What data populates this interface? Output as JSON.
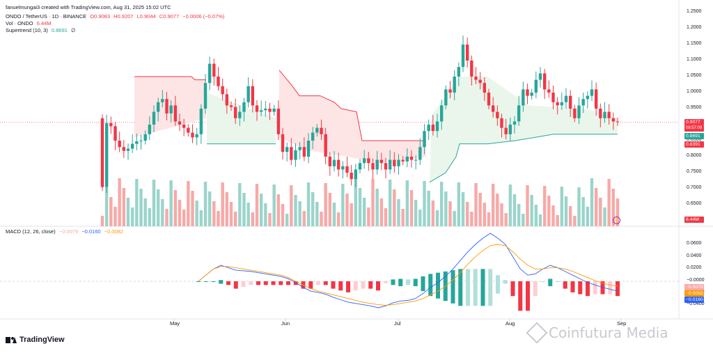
{
  "header": {
    "credit": "fanuelmungai3 created with TradingView.com, Aug 31, 2025 15:02 UTC",
    "symbol": "ONDO / TetherUS · 1D · BINANCE",
    "ohlc_o": "O0.9083",
    "ohlc_h": "H0.9207",
    "ohlc_l": "L0.9044",
    "ohlc_c": "C0.9077",
    "change": "−0.0006 (−0.07%)",
    "vol_label": "Vol · ONDO",
    "vol_value": "6.44M",
    "st_label": "Supertrend (10, 3)",
    "st_value": "0.8691",
    "st_extra": "∅",
    "macd_label": "MACD (12, 26, close)",
    "macd_hist": "−0.0079",
    "macd_line": "−0.0160",
    "macd_signal": "−0.0082"
  },
  "price_axis": {
    "ticks": [
      "1.2500",
      "1.2000",
      "1.1500",
      "1.1000",
      "1.0500",
      "1.0000",
      "0.9500",
      "0.9000",
      "0.8500",
      "0.8000",
      "0.7500",
      "0.7000",
      "0.6500"
    ],
    "tag_close": "0.9077",
    "tag_countdown": "08:57:09",
    "tag_st": "0.8691",
    "tag_low": "0.8391",
    "tag_vol": "6.44M"
  },
  "macd_axis": {
    "ticks": [
      "0.0600",
      "0.0400",
      "0.0200",
      "−0.0000",
      "−0.0200",
      "−0.0400"
    ],
    "tag_hist": "−0.0079",
    "tag_signal": "−0.0082",
    "tag_macd": "−0.0160"
  },
  "months": [
    "May",
    "Jun",
    "Jul",
    "Aug",
    "Sep"
  ],
  "branding": {
    "logo": "TradingView",
    "watermark": "Coinfutura Media"
  },
  "colors": {
    "up": "#26a69a",
    "down": "#f23645",
    "macd": "#2962ff",
    "signal": "#ff9800",
    "st_up_fill": "#e8f5e9",
    "st_down_fill": "#fde2e2"
  },
  "chart_data": {
    "type": "candlestick",
    "title": "ONDO / TetherUS · 1D · BINANCE",
    "ylim": [
      0.62,
      1.26
    ],
    "series": [
      {
        "name": "price_close",
        "values": [
          0.705,
          0.905,
          0.895,
          0.85,
          0.83,
          0.818,
          0.825,
          0.84,
          0.848,
          0.85,
          0.87,
          0.9,
          0.94,
          0.97,
          0.98,
          0.935,
          0.96,
          0.91,
          0.9,
          0.89,
          0.875,
          0.86,
          0.87,
          0.95,
          1.03,
          1.09,
          1.05,
          1.02,
          0.995,
          0.96,
          0.955,
          0.92,
          0.94,
          0.97,
          1.02,
          0.96,
          0.94,
          0.945,
          0.95,
          0.94,
          0.95,
          0.87,
          0.815,
          0.83,
          0.79,
          0.82,
          0.83,
          0.8,
          0.85,
          0.875,
          0.89,
          0.87,
          0.8,
          0.77,
          0.79,
          0.76,
          0.77,
          0.75,
          0.73,
          0.76,
          0.78,
          0.795,
          0.78,
          0.76,
          0.79,
          0.78,
          0.76,
          0.79,
          0.77,
          0.79,
          0.785,
          0.8,
          0.79,
          0.79,
          0.83,
          0.88,
          0.9,
          0.88,
          0.91,
          0.96,
          1.01,
          1.0,
          1.05,
          1.08,
          1.15,
          1.1,
          1.05,
          1.04,
          1.03,
          1.0,
          0.96,
          0.94,
          0.92,
          0.89,
          0.87,
          0.9,
          0.91,
          0.96,
          1.01,
          0.99,
          1.0,
          1.04,
          1.06,
          1.01,
          1.0,
          0.97,
          0.96,
          0.97,
          0.99,
          0.95,
          0.92,
          0.96,
          0.98,
          0.99,
          1.01,
          0.95,
          0.92,
          0.94,
          0.92,
          0.91,
          0.908
        ]
      }
    ],
    "supertrend_breaks": [
      "downtrend early May",
      "uptrend mid May",
      "downtrend Jun",
      "uptrend Jul to Aug"
    ],
    "macd_ylim": [
      -0.045,
      0.065
    ],
    "macd_series": [
      {
        "name": "MACD",
        "values": [
          0.0,
          0.01,
          0.02,
          0.026,
          0.022,
          0.018,
          0.017,
          0.016,
          0.014,
          0.012,
          0.01,
          0.008,
          0.004,
          -0.002,
          -0.01,
          -0.016,
          -0.018,
          -0.021,
          -0.026,
          -0.03,
          -0.034,
          -0.036,
          -0.038,
          -0.04,
          -0.043,
          -0.04,
          -0.035,
          -0.032,
          -0.031,
          -0.028,
          -0.02,
          -0.01,
          -0.002,
          0.008,
          0.02,
          0.034,
          0.048,
          0.06,
          0.07,
          0.078,
          0.07,
          0.06,
          0.04,
          0.02,
          0.01,
          0.012,
          0.02,
          0.026,
          0.022,
          0.016,
          0.01,
          0.004,
          -0.002,
          -0.006,
          -0.01,
          -0.013,
          -0.016
        ]
      },
      {
        "name": "Signal",
        "values": [
          0.0,
          0.01,
          0.02,
          0.024,
          0.024,
          0.022,
          0.02,
          0.018,
          0.016,
          0.014,
          0.012,
          0.01,
          0.006,
          0.0,
          -0.006,
          -0.012,
          -0.016,
          -0.019,
          -0.022,
          -0.025,
          -0.028,
          -0.031,
          -0.034,
          -0.036,
          -0.038,
          -0.039,
          -0.038,
          -0.036,
          -0.034,
          -0.032,
          -0.028,
          -0.022,
          -0.016,
          -0.008,
          0.002,
          0.014,
          0.028,
          0.04,
          0.05,
          0.058,
          0.06,
          0.058,
          0.048,
          0.036,
          0.026,
          0.02,
          0.02,
          0.022,
          0.022,
          0.02,
          0.016,
          0.011,
          0.006,
          0.001,
          -0.003,
          -0.006,
          -0.008
        ]
      }
    ]
  }
}
